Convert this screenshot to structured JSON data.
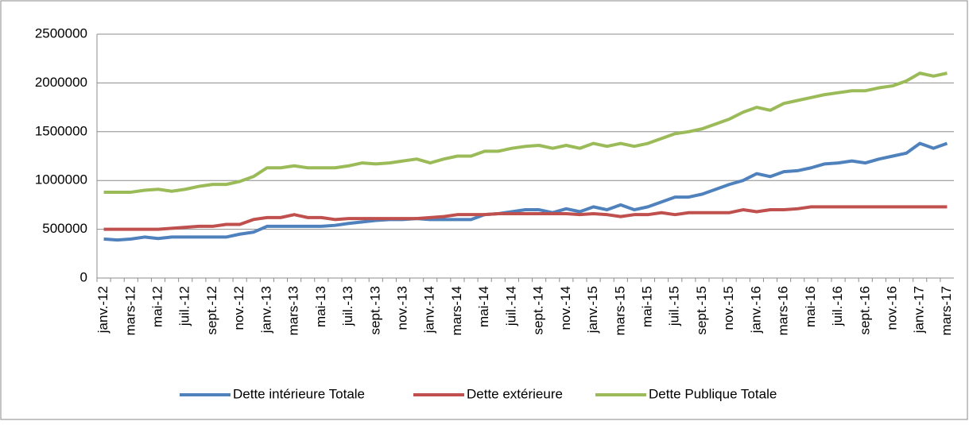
{
  "chart_data": {
    "type": "line",
    "categories": [
      "janv.-12",
      null,
      "mars-12",
      null,
      "mai-12",
      null,
      "juil.-12",
      null,
      "sept.-12",
      null,
      "nov.-12",
      null,
      "janv.-13",
      null,
      "mars-13",
      null,
      "mai-13",
      null,
      "juil.-13",
      null,
      "sept.-13",
      null,
      "nov.-13",
      null,
      "janv.-14",
      null,
      "mars-14",
      null,
      "mai-14",
      null,
      "juil.-14",
      null,
      "sept.-14",
      null,
      "nov.-14",
      null,
      "janv.-15",
      null,
      "mars-15",
      null,
      "mai-15",
      null,
      "juil.-15",
      null,
      "sept.-15",
      null,
      "nov.-15",
      null,
      "janv.-16",
      null,
      "mars-16",
      null,
      "mai-16",
      null,
      "juil.-16",
      null,
      "sept.-16",
      null,
      "nov.-16",
      null,
      "janv.-17",
      null,
      "mars-17"
    ],
    "series": [
      {
        "name": "Dette intérieure Totale",
        "color": "#4f81bd",
        "values": [
          400000,
          390000,
          400000,
          420000,
          405000,
          420000,
          420000,
          420000,
          420000,
          420000,
          450000,
          470000,
          530000,
          530000,
          530000,
          530000,
          530000,
          540000,
          560000,
          575000,
          590000,
          600000,
          600000,
          610000,
          600000,
          600000,
          600000,
          600000,
          650000,
          660000,
          680000,
          700000,
          700000,
          670000,
          710000,
          680000,
          730000,
          700000,
          750000,
          700000,
          730000,
          780000,
          830000,
          830000,
          860000,
          910000,
          960000,
          1000000,
          1070000,
          1040000,
          1090000,
          1100000,
          1130000,
          1170000,
          1180000,
          1200000,
          1180000,
          1220000,
          1250000,
          1280000,
          1380000,
          1330000,
          1380000
        ]
      },
      {
        "name": "Dette extérieure",
        "color": "#c0504d",
        "values": [
          500000,
          500000,
          500000,
          500000,
          500000,
          510000,
          520000,
          530000,
          530000,
          550000,
          550000,
          600000,
          620000,
          620000,
          650000,
          620000,
          620000,
          600000,
          610000,
          610000,
          610000,
          610000,
          610000,
          610000,
          620000,
          630000,
          650000,
          650000,
          650000,
          660000,
          660000,
          660000,
          660000,
          660000,
          660000,
          650000,
          660000,
          650000,
          630000,
          650000,
          650000,
          670000,
          650000,
          670000,
          670000,
          670000,
          670000,
          700000,
          680000,
          700000,
          700000,
          710000,
          730000,
          730000,
          730000,
          730000,
          730000,
          730000,
          730000,
          730000,
          730000,
          730000,
          730000
        ]
      },
      {
        "name": "Dette Publique Totale",
        "color": "#9bbb59",
        "values": [
          880000,
          880000,
          880000,
          900000,
          910000,
          890000,
          910000,
          940000,
          960000,
          960000,
          990000,
          1040000,
          1130000,
          1130000,
          1150000,
          1130000,
          1130000,
          1130000,
          1150000,
          1180000,
          1170000,
          1180000,
          1200000,
          1220000,
          1180000,
          1220000,
          1250000,
          1250000,
          1300000,
          1300000,
          1330000,
          1350000,
          1360000,
          1330000,
          1360000,
          1330000,
          1380000,
          1350000,
          1380000,
          1350000,
          1380000,
          1430000,
          1480000,
          1500000,
          1530000,
          1580000,
          1630000,
          1700000,
          1750000,
          1720000,
          1790000,
          1820000,
          1850000,
          1880000,
          1900000,
          1920000,
          1920000,
          1950000,
          1970000,
          2020000,
          2100000,
          2070000,
          2100000
        ]
      }
    ],
    "ylim": [
      0,
      2500000
    ],
    "yticks": [
      0,
      500000,
      1000000,
      1500000,
      2000000,
      2500000
    ],
    "grid": true,
    "legend": "bottom"
  }
}
